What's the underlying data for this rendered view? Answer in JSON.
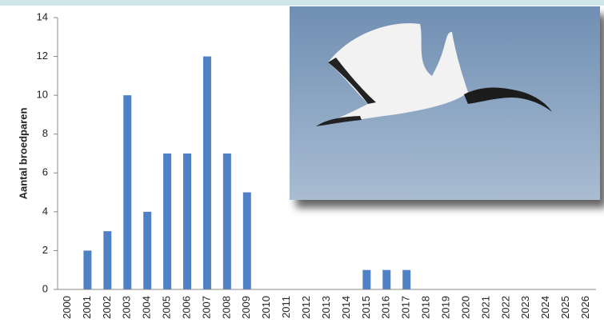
{
  "chart_data": {
    "type": "bar",
    "ylabel": "Aantal broedparen",
    "categories": [
      "2000",
      "2001",
      "2002",
      "2003",
      "2004",
      "2005",
      "2006",
      "2007",
      "2008",
      "2009",
      "2010",
      "2011",
      "2012",
      "2013",
      "2014",
      "2015",
      "2016",
      "2017",
      "2018",
      "2019",
      "2020",
      "2021",
      "2022",
      "2023",
      "2024",
      "2025",
      "2026"
    ],
    "values": [
      0,
      2,
      3,
      10,
      4,
      7,
      7,
      12,
      7,
      5,
      0,
      0,
      0,
      0,
      0,
      1,
      1,
      1,
      0,
      0,
      0,
      0,
      0,
      0,
      0,
      0,
      0
    ],
    "color": "#4f81c7",
    "ylim": [
      0,
      14
    ],
    "yticks": [
      0,
      2,
      4,
      6,
      8,
      10,
      12,
      14
    ],
    "grid": false
  }
}
